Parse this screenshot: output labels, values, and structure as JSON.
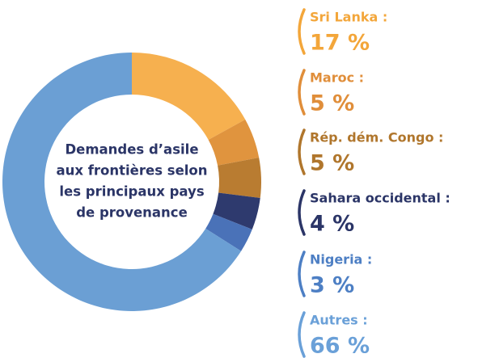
{
  "chart_data": {
    "type": "pie",
    "title": [
      "Demandes d’asile",
      "aux frontières selon",
      "les principaux pays",
      "de provenance"
    ],
    "categories": [
      "Sri Lanka :",
      "Maroc :",
      "Rép. dém. Congo :",
      "Sahara occidental :",
      "Nigeria :",
      "Autres :"
    ],
    "values": [
      17,
      5,
      5,
      4,
      3,
      66
    ],
    "value_labels": [
      "17 %",
      "5 %",
      "5 %",
      "4 %",
      "3 %",
      "66 %"
    ],
    "colors": [
      "#f6b04f",
      "#e0943e",
      "#b97c31",
      "#2e3a6e",
      "#4a72b8",
      "#6b9fd4"
    ],
    "label_colors": [
      "#f3a63a",
      "#e08e3a",
      "#b0762c",
      "#2b3567",
      "#4d7fc4",
      "#6aa0d8"
    ]
  }
}
